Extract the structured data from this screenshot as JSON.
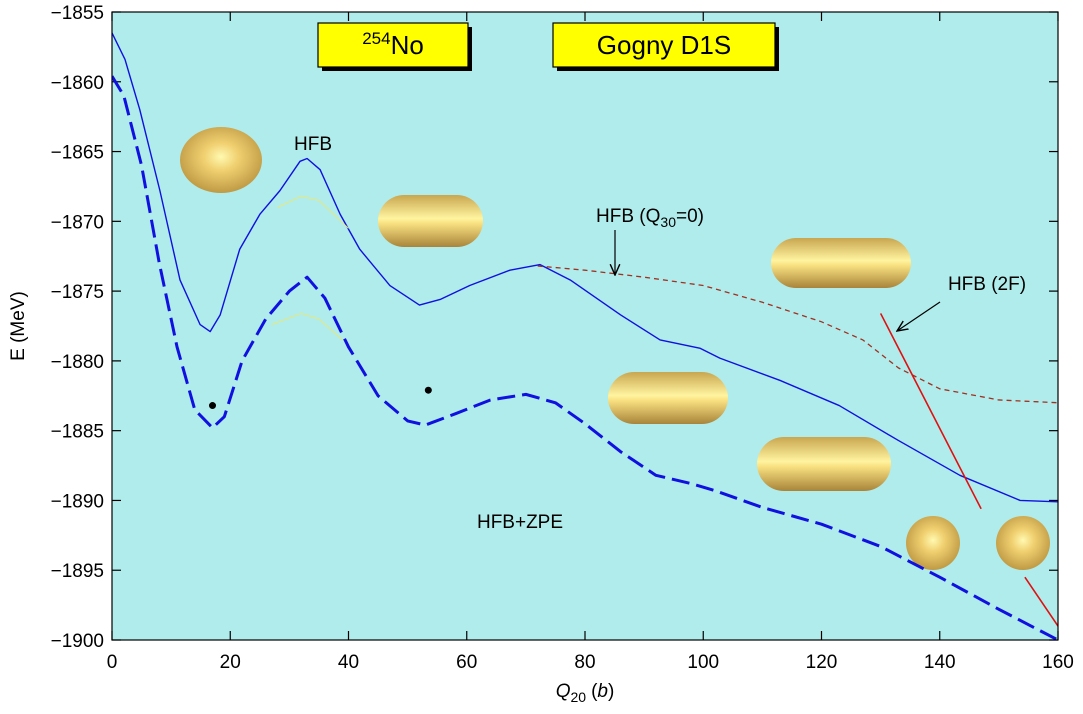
{
  "chart_data": {
    "type": "line",
    "nucleus": {
      "mass": "254",
      "symbol": "No"
    },
    "interaction": "Gogny D1S",
    "y_label": "E (MeV)",
    "x_label": {
      "symbol": "Q",
      "subscript": "20",
      "unit_parts": [
        "(",
        "b",
        ")"
      ]
    },
    "xlim": [
      0,
      160
    ],
    "xticks": [
      0,
      20,
      40,
      60,
      80,
      100,
      120,
      140,
      160
    ],
    "ylim": [
      -1900,
      -1855
    ],
    "yticks": [
      {
        "value": -1855,
        "label": "−1855"
      },
      {
        "value": -1860,
        "label": "−1860"
      },
      {
        "value": -1865,
        "label": "−1865"
      },
      {
        "value": -1870,
        "label": "−1870"
      },
      {
        "value": -1875,
        "label": "−1875"
      },
      {
        "value": -1880,
        "label": "−1880"
      },
      {
        "value": -1885,
        "label": "−1885"
      },
      {
        "value": -1890,
        "label": "−1890"
      },
      {
        "value": -1895,
        "label": "−1895"
      },
      {
        "value": -1900,
        "label": "−1900"
      }
    ],
    "annotations": {
      "hfb": "HFB",
      "hfb_q30": [
        "HFB (Q",
        "30",
        "=0)"
      ],
      "hfb_2f": "HFB (2F)",
      "hfb_zpe": "HFB+ZPE"
    },
    "series": [
      {
        "color": "#1010e0",
        "width": 1.4,
        "dash": "solid",
        "x": [
          0,
          2.2,
          4.7,
          8.1,
          11.5,
          14.9,
          16.6,
          18.3,
          21.6,
          25,
          28.4,
          31.8,
          33,
          35.2,
          38.6,
          41.9,
          47,
          52,
          55.5,
          60.5,
          67.3,
          72.4,
          77.5,
          86,
          92.7,
          99.5,
          102.8,
          113,
          123,
          133,
          143.4,
          153.6,
          160
        ],
        "values": [
          -1856.5,
          -1858.4,
          -1862.0,
          -1867.8,
          -1874.2,
          -1877.4,
          -1877.9,
          -1876.7,
          -1872.0,
          -1869.5,
          -1867.8,
          -1865.7,
          -1865.5,
          -1866.3,
          -1869.5,
          -1872.0,
          -1874.6,
          -1876.0,
          -1875.6,
          -1874.6,
          -1873.5,
          -1873.1,
          -1874.2,
          -1876.7,
          -1878.5,
          -1879.1,
          -1879.8,
          -1881.4,
          -1883.2,
          -1885.7,
          -1888.2,
          -1890.0,
          -1890.1
        ]
      },
      {
        "color": "#1010e0",
        "width": 3,
        "dash": "long",
        "x": [
          0,
          2,
          5,
          8,
          11,
          14,
          17,
          19,
          22,
          26,
          30,
          33,
          36,
          40,
          45,
          50,
          53,
          58,
          64,
          70,
          75,
          80,
          86,
          92,
          98,
          102,
          110,
          120,
          130,
          140,
          150,
          160
        ],
        "values": [
          -1859.6,
          -1861,
          -1866,
          -1873,
          -1879,
          -1883.5,
          -1884.8,
          -1884,
          -1880,
          -1877,
          -1875,
          -1874,
          -1875.5,
          -1879,
          -1882.5,
          -1884.3,
          -1884.6,
          -1883.8,
          -1882.8,
          -1882.4,
          -1883,
          -1884.5,
          -1886.5,
          -1888.2,
          -1888.8,
          -1889.3,
          -1890.5,
          -1891.7,
          -1893.3,
          -1895.5,
          -1897.8,
          -1900
        ]
      },
      {
        "color": "#a03020",
        "width": 1.3,
        "dash": "short",
        "x": [
          72,
          80,
          90,
          100,
          110,
          120,
          127,
          133,
          140,
          150,
          160
        ],
        "values": [
          -1873.2,
          -1873.5,
          -1874,
          -1874.6,
          -1875.8,
          -1877.2,
          -1878.5,
          -1880.5,
          -1882,
          -1882.8,
          -1883
        ]
      },
      {
        "color": "#e01010",
        "width": 1.6,
        "dash": "solid",
        "x": [
          130,
          147,
          150.7,
          154.4,
          160
        ],
        "values": [
          -1876.6,
          -1890.6,
          null,
          -1895.5,
          -1899
        ]
      },
      {
        "color": "#e6e87a",
        "width": 1,
        "dash": "solid",
        "x": [
          28,
          32,
          35,
          40
        ],
        "values": [
          -1869,
          -1868.2,
          -1868.5,
          -1870.5
        ]
      },
      {
        "color": "#e6e87a",
        "width": 1,
        "dash": "solid",
        "x": [
          27,
          32,
          35,
          39
        ],
        "values": [
          -1877.4,
          -1876.6,
          -1877,
          -1878.5
        ]
      }
    ],
    "points": {
      "color": "#000000",
      "x": [
        17,
        53.5
      ],
      "values": [
        -1883.2,
        -1882.1
      ]
    }
  }
}
